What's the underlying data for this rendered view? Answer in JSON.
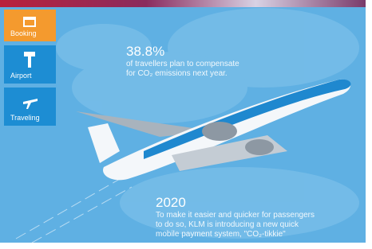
{
  "nav": {
    "items": [
      {
        "label": "Booking"
      },
      {
        "label": "Airport"
      },
      {
        "label": "Traveling"
      }
    ]
  },
  "facts": [
    {
      "headline": "38.8%",
      "lines": [
        "of travellers plan to compensate",
        "for CO₂ emissions next year."
      ]
    },
    {
      "headline": "2020",
      "lines": [
        "To make it easier and quicker for passengers",
        "to do so, KLM is introducing a new quick",
        "mobile payment system, \"CO₂-tikkie\""
      ]
    }
  ]
}
